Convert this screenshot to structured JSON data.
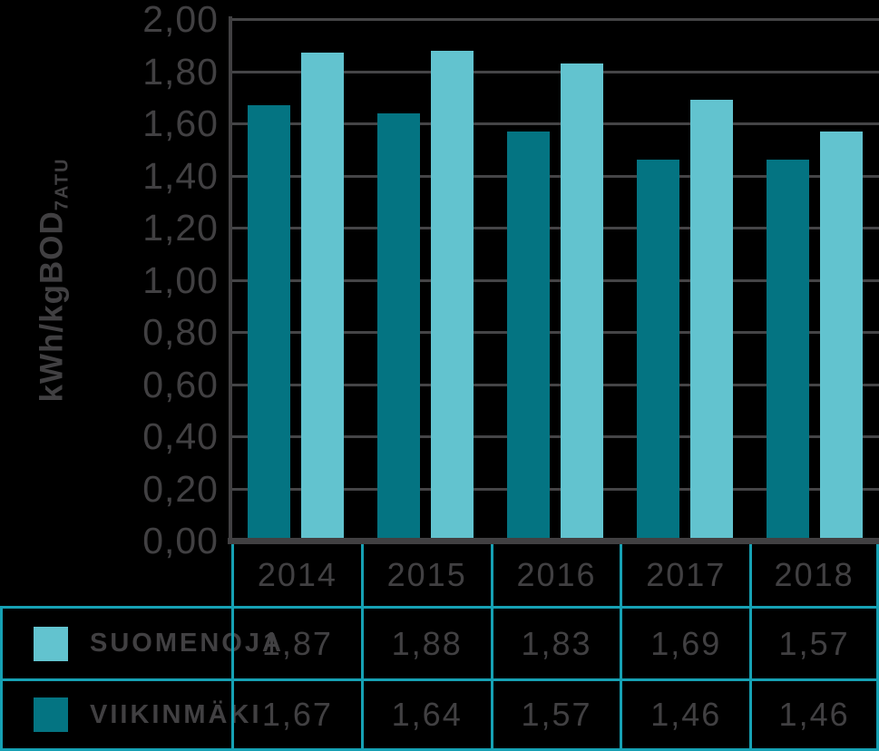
{
  "colors": {
    "background": "#000000",
    "axis_line": "#414042",
    "gridline": "#454547",
    "text": "#414042",
    "table_border": "#16a1b4",
    "suomenoja": "#62c3cf",
    "viikinmaki": "#047482"
  },
  "chart_data": {
    "type": "bar",
    "title": "",
    "xlabel": "",
    "ylabel": "kWh/kgBOD7ATU",
    "ylabel_base": "kWh/kgBOD",
    "ylabel_subscript": "7ATU",
    "categories": [
      "2014",
      "2015",
      "2016",
      "2017",
      "2018"
    ],
    "series": [
      {
        "name": "SUOMENOJA",
        "color": "#62c3cf",
        "values": [
          1.87,
          1.88,
          1.83,
          1.69,
          1.57
        ]
      },
      {
        "name": "VIIKINMÄKI",
        "color": "#047482",
        "values": [
          1.67,
          1.64,
          1.57,
          1.46,
          1.46
        ]
      }
    ],
    "ylim": [
      0,
      2.0
    ],
    "ytick_step": 0.2,
    "ytick_labels": [
      "0,00",
      "0,20",
      "0,40",
      "0,60",
      "0,80",
      "1,00",
      "1,20",
      "1,40",
      "1,60",
      "1,80",
      "2,00"
    ],
    "grid": true,
    "legend_position": "table-left",
    "bar_group_order": [
      "VIIKINMÄKI",
      "SUOMENOJA"
    ]
  },
  "table": {
    "year_headers": [
      "2014",
      "2015",
      "2016",
      "2017",
      "2018"
    ],
    "rows": [
      {
        "label": "SUOMENOJA",
        "swatch_color": "#62c3cf",
        "values": [
          "1,87",
          "1,88",
          "1,83",
          "1,69",
          "1,57"
        ]
      },
      {
        "label": "VIIKINMÄKI",
        "swatch_color": "#047482",
        "values": [
          "1,67",
          "1,64",
          "1,57",
          "1,46",
          "1,46"
        ]
      }
    ]
  }
}
